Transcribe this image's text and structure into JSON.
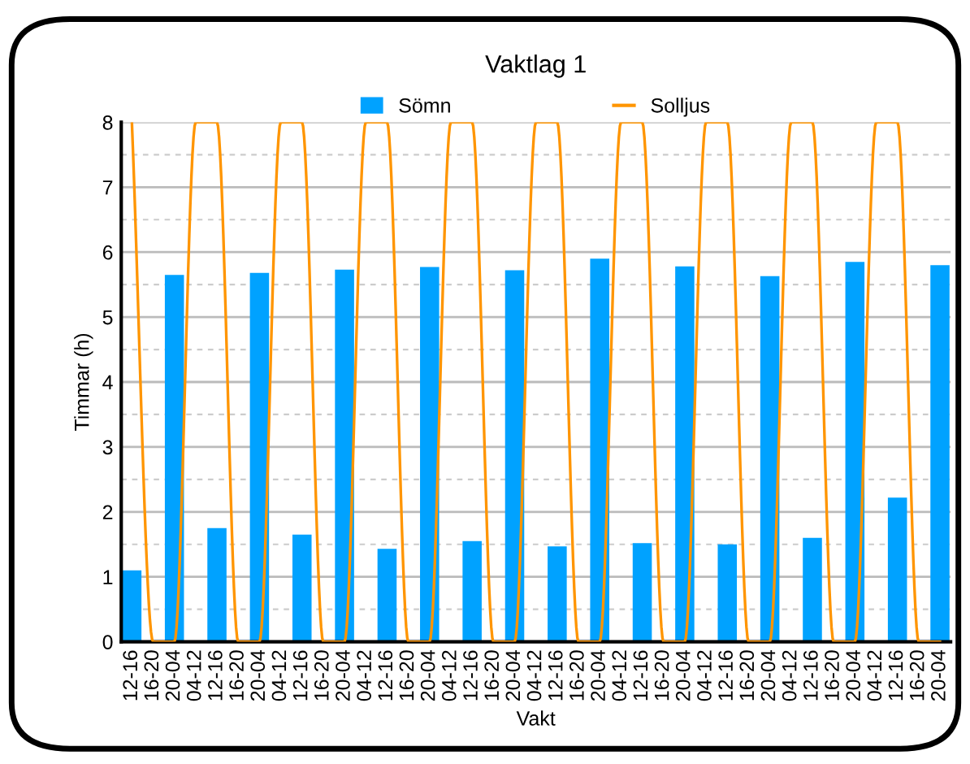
{
  "chart_data": {
    "type": "bar",
    "title": "Vaktlag 1",
    "xlabel": "Vakt",
    "ylabel": "Timmar (h)",
    "categories": [
      "12-16",
      "16-20",
      "20-04",
      "04-12",
      "12-16",
      "16-20",
      "20-04",
      "04-12",
      "12-16",
      "16-20",
      "20-04",
      "04-12",
      "12-16",
      "16-20",
      "20-04",
      "04-12",
      "12-16",
      "16-20",
      "20-04",
      "04-12",
      "12-16",
      "16-20",
      "20-04",
      "04-12",
      "12-16",
      "16-20",
      "20-04",
      "04-12",
      "12-16",
      "16-20",
      "20-04",
      "04-12",
      "12-16",
      "16-20",
      "20-04",
      "04-12",
      "12-16",
      "16-20",
      "20-04"
    ],
    "series": [
      {
        "name": "Sömn",
        "color": "#00a2ff",
        "values": [
          1.1,
          null,
          5.65,
          null,
          1.75,
          null,
          5.68,
          null,
          1.65,
          null,
          5.73,
          null,
          1.43,
          null,
          5.77,
          null,
          1.55,
          null,
          5.72,
          null,
          1.47,
          null,
          5.9,
          null,
          1.52,
          null,
          5.78,
          null,
          1.5,
          null,
          5.63,
          null,
          1.6,
          null,
          5.85,
          null,
          2.22,
          null,
          5.8
        ]
      },
      {
        "name": "Solljus",
        "type": "line",
        "color": "#ff9500",
        "values": [
          8,
          0,
          0,
          8,
          8,
          0,
          0,
          8,
          8,
          0,
          0,
          8,
          8,
          0,
          0,
          8,
          8,
          0,
          0,
          8,
          8,
          0,
          0,
          8,
          8,
          0,
          0,
          8,
          8,
          0,
          0,
          8,
          8,
          0,
          0,
          8,
          8,
          0,
          0
        ]
      }
    ],
    "ylim": [
      0,
      8
    ],
    "yticks": [
      0,
      1,
      2,
      3,
      4,
      5,
      6,
      7,
      8
    ],
    "grid": "y",
    "legend": "top",
    "marker": "none",
    "line_style": "solid"
  }
}
